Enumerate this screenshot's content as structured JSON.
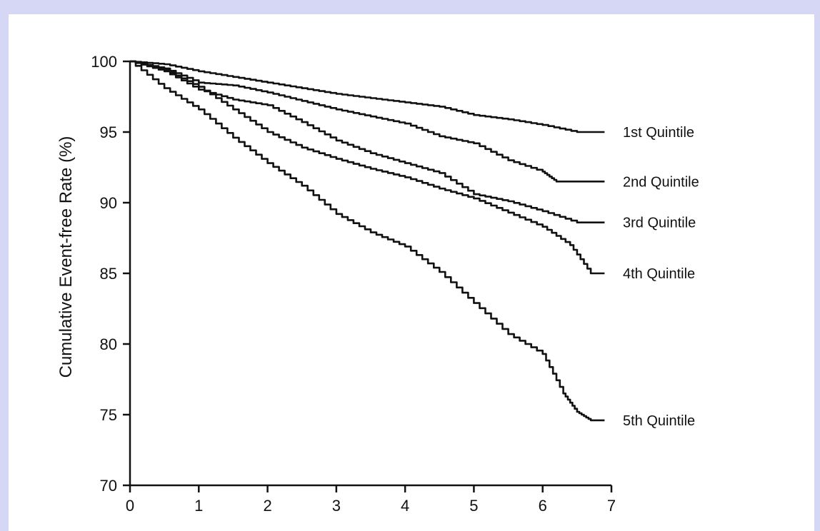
{
  "colors": {
    "frame": "#d6d6f5",
    "panel": "#ffffff",
    "ink": "#111111"
  },
  "chart_data": {
    "type": "line",
    "title": "",
    "xlabel": "",
    "ylabel": "Cumulative Event-free Rate (%)",
    "xlim": [
      0,
      7
    ],
    "ylim": [
      70,
      100
    ],
    "xticks": [
      0,
      1,
      2,
      3,
      4,
      5,
      6,
      7
    ],
    "yticks": [
      70,
      75,
      80,
      85,
      90,
      95,
      100
    ],
    "grid": false,
    "legend": "inline-right",
    "series": [
      {
        "name": "1st Quintile",
        "x": [
          0,
          0.5,
          1,
          1.5,
          2,
          2.5,
          3,
          3.5,
          4,
          4.5,
          5,
          5.5,
          6,
          6.5,
          6.9
        ],
        "y": [
          100,
          99.8,
          99.3,
          98.9,
          98.5,
          98.1,
          97.7,
          97.4,
          97.1,
          96.8,
          96.2,
          95.9,
          95.5,
          95.0,
          95.0
        ]
      },
      {
        "name": "2nd Quintile",
        "x": [
          0,
          0.5,
          1,
          1.5,
          2,
          2.5,
          3,
          3.5,
          4,
          4.5,
          5,
          5.5,
          6,
          6.2,
          6.9
        ],
        "y": [
          100,
          99.5,
          98.5,
          98.3,
          97.8,
          97.2,
          96.6,
          96.1,
          95.6,
          94.7,
          94.2,
          93.0,
          92.2,
          91.5,
          91.5
        ]
      },
      {
        "name": "3rd Quintile",
        "x": [
          0,
          0.5,
          1,
          1.5,
          2,
          2.5,
          3,
          3.5,
          4,
          4.5,
          5,
          5.5,
          6,
          6.5,
          6.9
        ],
        "y": [
          100,
          99.3,
          98.0,
          97.3,
          96.9,
          95.7,
          94.4,
          93.5,
          92.8,
          92.1,
          90.6,
          90.1,
          89.4,
          88.6,
          88.6
        ]
      },
      {
        "name": "4th Quintile",
        "x": [
          0,
          0.5,
          1,
          1.5,
          2,
          2.5,
          3,
          3.5,
          4,
          4.5,
          5,
          5.5,
          6,
          6.4,
          6.7,
          6.9
        ],
        "y": [
          100,
          99.4,
          98.2,
          96.6,
          95.0,
          93.9,
          93.1,
          92.4,
          91.8,
          91.0,
          90.3,
          89.3,
          88.3,
          87.0,
          85.0,
          85.0
        ]
      },
      {
        "name": "5th Quintile",
        "x": [
          0,
          0.5,
          1,
          1.5,
          2,
          2.5,
          3,
          3.5,
          4,
          4.5,
          5,
          5.5,
          6,
          6.3,
          6.5,
          6.7,
          6.9
        ],
        "y": [
          100,
          98.1,
          96.6,
          94.6,
          92.8,
          91.2,
          89.2,
          87.9,
          86.9,
          85.1,
          82.9,
          80.7,
          79.3,
          76.5,
          75.2,
          74.6,
          74.6
        ]
      }
    ]
  }
}
